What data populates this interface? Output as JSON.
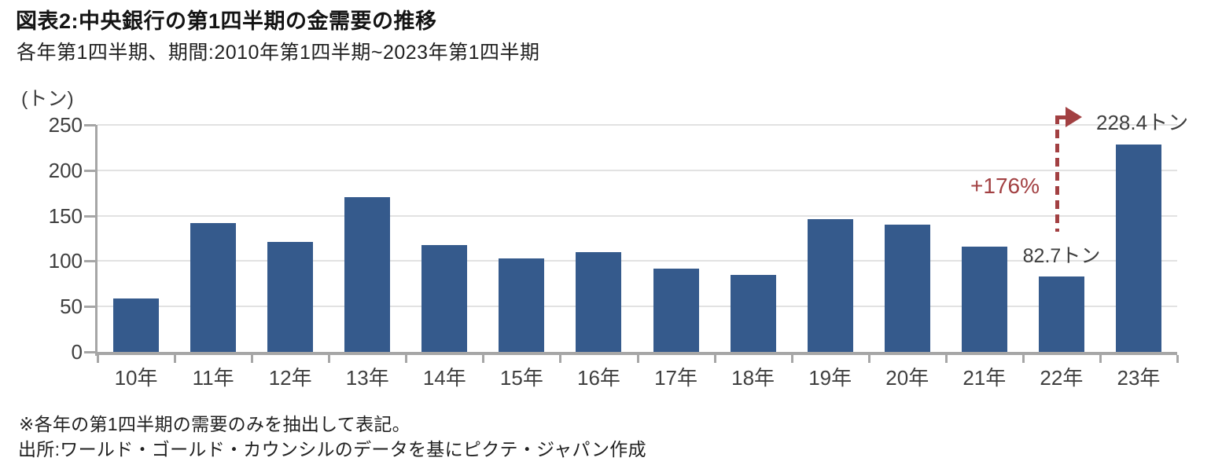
{
  "chart_data": {
    "type": "bar",
    "title": "図表2:中央銀行の第1四半期の金需要の推移",
    "subtitle": "各年第1四半期、期間:2010年第1四半期~2023年第1四半期",
    "unit_label": "(トン)",
    "categories": [
      "10年",
      "11年",
      "12年",
      "13年",
      "14年",
      "15年",
      "16年",
      "17年",
      "18年",
      "19年",
      "20年",
      "21年",
      "22年",
      "23年"
    ],
    "values": [
      59,
      142,
      121,
      170,
      118,
      103,
      110,
      92,
      85,
      146,
      140,
      116,
      82.7,
      228.4
    ],
    "xlabel": "",
    "ylabel": "トン",
    "ylim": [
      0,
      250
    ],
    "yticks": [
      0,
      50,
      100,
      150,
      200,
      250
    ],
    "grid": "horizontal",
    "legend": "none",
    "annotations": {
      "growth_label": "+176%",
      "value_2022_label": "82.7トン",
      "value_2023_label": "228.4トン"
    },
    "colors": {
      "bar": "#355A8C",
      "accent": "#A24042",
      "grid": "#E2E2E2",
      "axis": "#A6A6A6",
      "label_text": "#3F3F3F"
    }
  },
  "footer": {
    "note": "※各年の第1四半期の需要のみを抽出して表記。",
    "source": "出所:ワールド・ゴールド・カウンシルのデータを基にピクテ・ジャパン作成"
  }
}
